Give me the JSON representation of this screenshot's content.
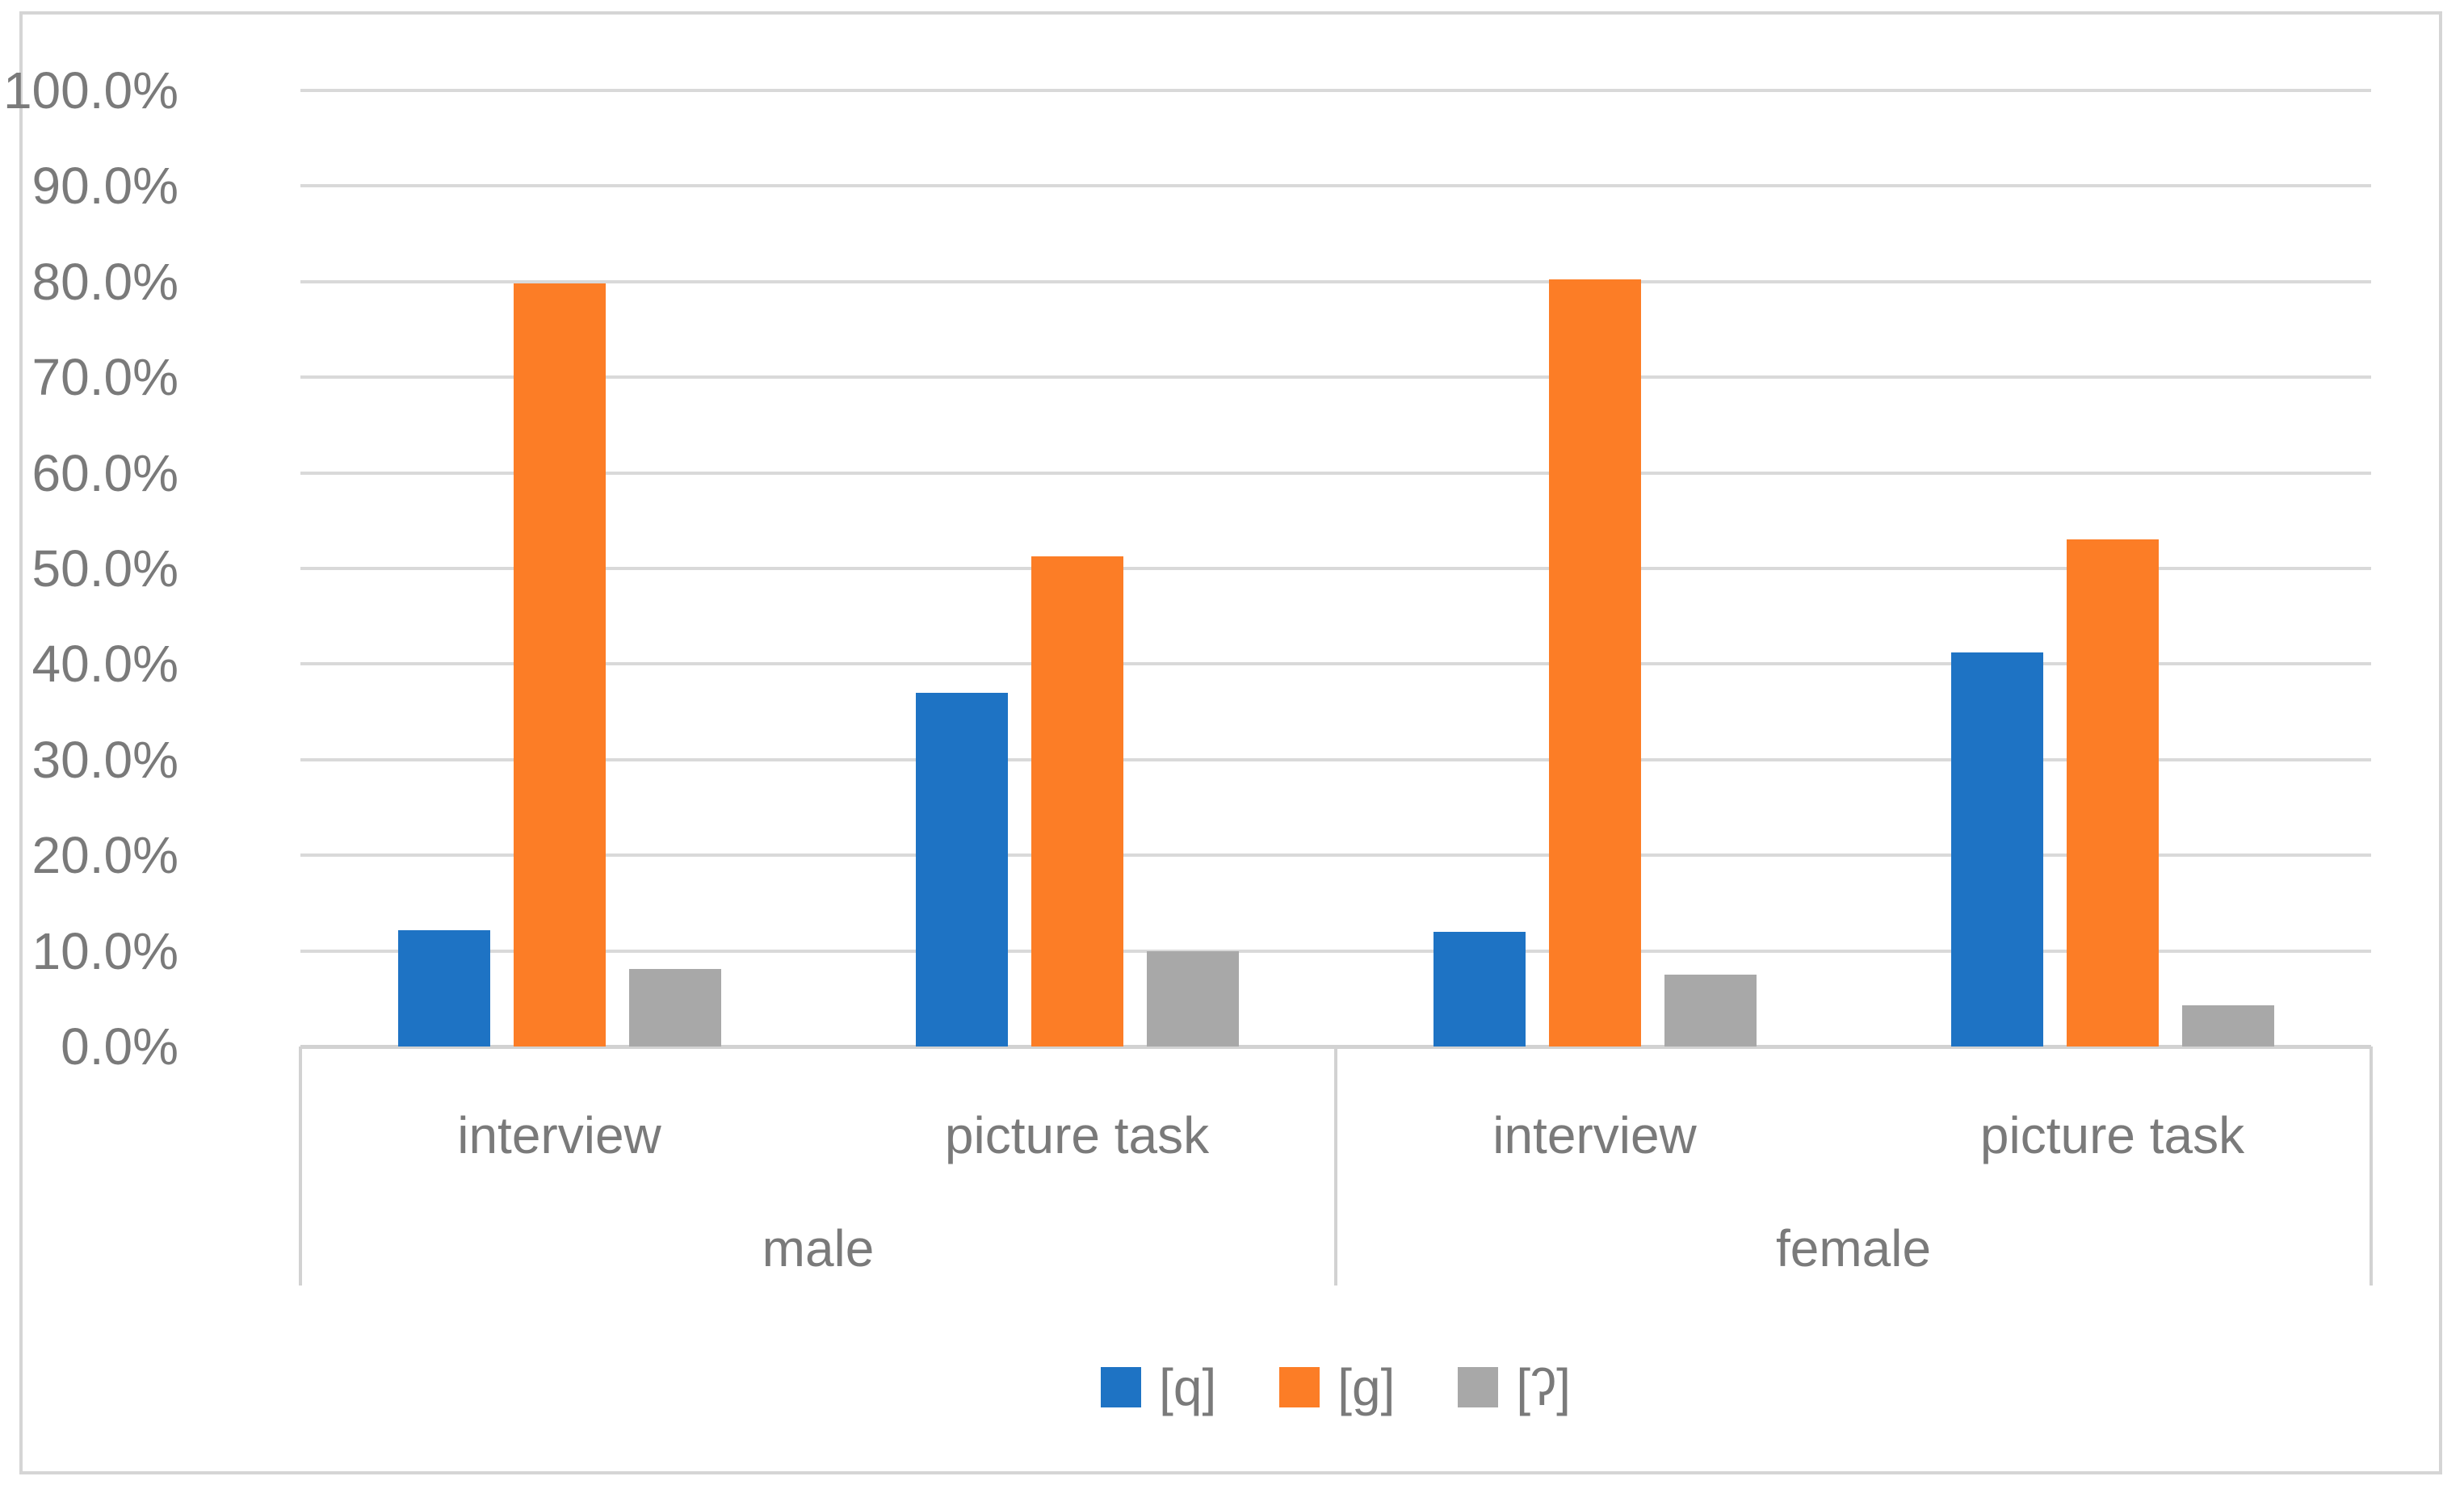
{
  "figure": {
    "kind": "grouped-column-chart",
    "border_color": "#d5d5d5",
    "background": "#ffffff"
  },
  "chart_data": {
    "type": "bar",
    "title": "",
    "xlabel": "",
    "ylabel": "",
    "ylim": [
      0,
      100
    ],
    "ytick_step": 10,
    "y_ticks": [
      "100.0%",
      "90.0%",
      "80.0%",
      "70.0%",
      "60.0%",
      "50.0%",
      "40.0%",
      "30.0%",
      "20.0%",
      "10.0%",
      "0.0%"
    ],
    "grid": true,
    "legend_position": "bottom",
    "group_labels": [
      "male",
      "female"
    ],
    "categories": [
      "interview",
      "picture task",
      "interview",
      "picture task"
    ],
    "series": [
      {
        "name": "[q]",
        "color": "#1e73c4",
        "values": [
          12.2,
          37.0,
          12.0,
          41.2
        ]
      },
      {
        "name": "[g]",
        "color": "#fc7d26",
        "values": [
          79.8,
          51.3,
          80.2,
          53.0
        ]
      },
      {
        "name": "[ʔ]",
        "color": "#a8a8a8",
        "values": [
          8.1,
          10.0,
          7.5,
          4.3
        ]
      }
    ],
    "colors": {
      "gridline": "#d9d9d9",
      "axis_line": "#d2d2d2",
      "tick_text": "#7a7a7a"
    }
  }
}
